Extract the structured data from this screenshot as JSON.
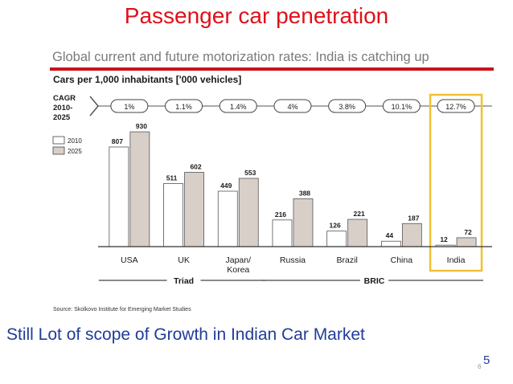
{
  "slide": {
    "title": "Passenger car penetration",
    "subtitle": "Global current and future  motorization rates: India is catching up",
    "bottom_note": "Still Lot of scope of Growth in Indian Car Market",
    "page_small": "6",
    "page_big": "5",
    "source": "Source: Skolkovo Institute for Emerging Market Studies"
  },
  "chart_data": {
    "type": "bar",
    "title": "Cars per 1,000 inhabitants ['000 vehicles]",
    "cagr_label": "CAGR 2010-2025",
    "categories": [
      "USA",
      "UK",
      "Japan/ Korea",
      "Russia",
      "Brazil",
      "China",
      "India"
    ],
    "series": [
      {
        "name": "2010",
        "values": [
          807,
          511,
          449,
          216,
          126,
          44,
          12
        ],
        "color": "#ffffff"
      },
      {
        "name": "2025",
        "values": [
          930,
          602,
          553,
          388,
          221,
          187,
          72
        ],
        "color": "#d8cfc9"
      }
    ],
    "cagr": [
      "1%",
      "1.1%",
      "1.4%",
      "4%",
      "3.8%",
      "10.1%",
      "12.7%"
    ],
    "groups": [
      {
        "name": "Triad",
        "from": 0,
        "to": 2
      },
      {
        "name": "BRIC",
        "from": 3,
        "to": 6
      }
    ],
    "highlight": "India",
    "highlight_color": "#f2c12e",
    "ylim": [
      0,
      1000
    ],
    "legend_position": "top-left",
    "grid": false
  }
}
